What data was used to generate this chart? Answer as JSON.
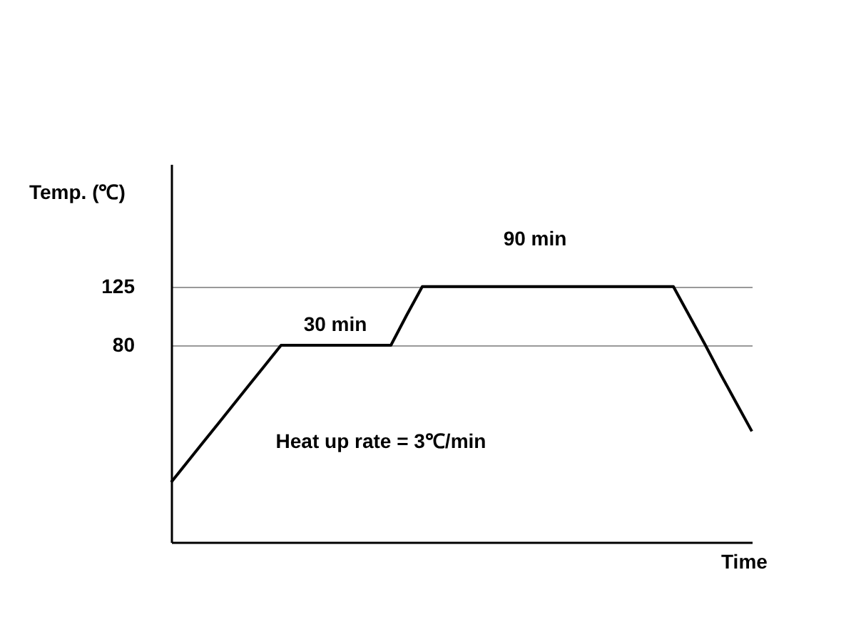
{
  "chart_data": {
    "type": "line",
    "ylabel": "Temp. (℃)",
    "xlabel": "Time",
    "categories": [
      null,
      null,
      null,
      null,
      null,
      null,
      null,
      null,
      null,
      null,
      null,
      null,
      null,
      null,
      null,
      null,
      null,
      null,
      null,
      null,
      null,
      null,
      null,
      null,
      null,
      null,
      null,
      null,
      null,
      null,
      null,
      null,
      null,
      null,
      null,
      null,
      null,
      null
    ],
    "series": [
      {
        "color": "#000000",
        "values": [
          -25,
          -10,
          5,
          20,
          35,
          50,
          65,
          80,
          80,
          80,
          80,
          80,
          80,
          80,
          80,
          103,
          125,
          125,
          125,
          125,
          125,
          125,
          125,
          125,
          125,
          125,
          125,
          125,
          125,
          125,
          125,
          125,
          125,
          103,
          81,
          58,
          36,
          14
        ]
      }
    ],
    "ylim": [
      -71,
      219
    ],
    "yticks": [
      80,
      125
    ],
    "tick_labels": "y",
    "grid": "y",
    "marker": "none",
    "line_style": "solid",
    "annotations": [
      "30 min",
      "90 min",
      "Heat up rate = 3℃/min"
    ]
  }
}
